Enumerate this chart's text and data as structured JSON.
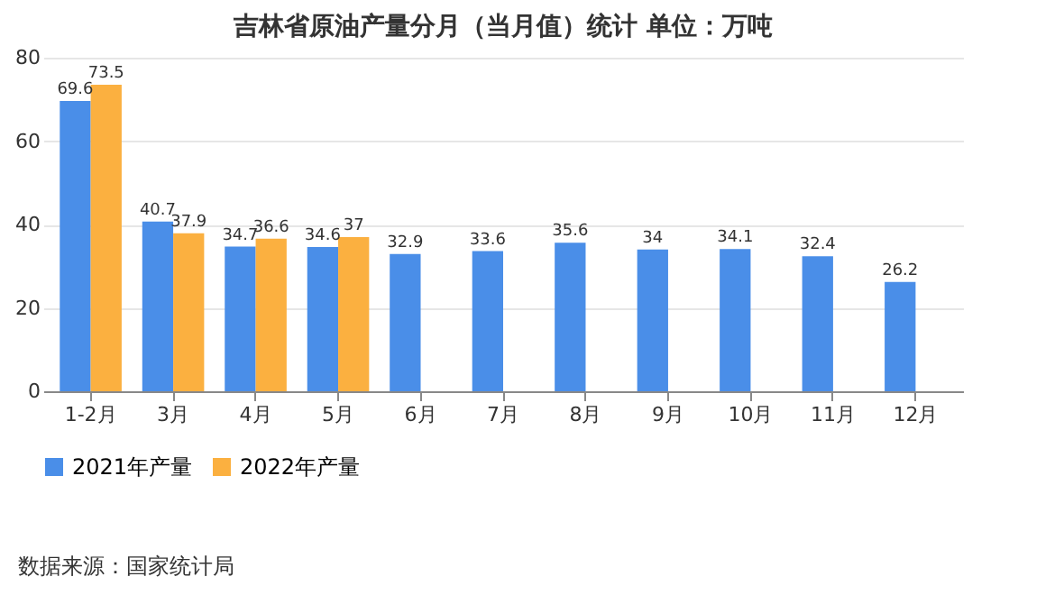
{
  "chart_data": {
    "type": "bar",
    "title": "吉林省原油产量分月（当月值）统计  单位：万吨",
    "categories": [
      "1-2月",
      "3月",
      "4月",
      "5月",
      "6月",
      "7月",
      "8月",
      "9月",
      "10月",
      "11月",
      "12月"
    ],
    "series": [
      {
        "name": "2021年产量",
        "color": "#4a8ee8",
        "values": [
          69.6,
          40.7,
          34.7,
          34.6,
          32.9,
          33.6,
          35.6,
          34,
          34.1,
          32.4,
          26.2
        ]
      },
      {
        "name": "2022年产量",
        "color": "#fbb040",
        "values": [
          73.5,
          37.9,
          36.6,
          37,
          null,
          null,
          null,
          null,
          null,
          null,
          null
        ]
      }
    ],
    "ylim": [
      0,
      80
    ],
    "yticks": [
      0,
      20,
      40,
      60,
      80
    ],
    "grid": "y",
    "legend": "bottom",
    "data_labels": true,
    "annotations": [
      "数据来源：国家统计局"
    ]
  }
}
